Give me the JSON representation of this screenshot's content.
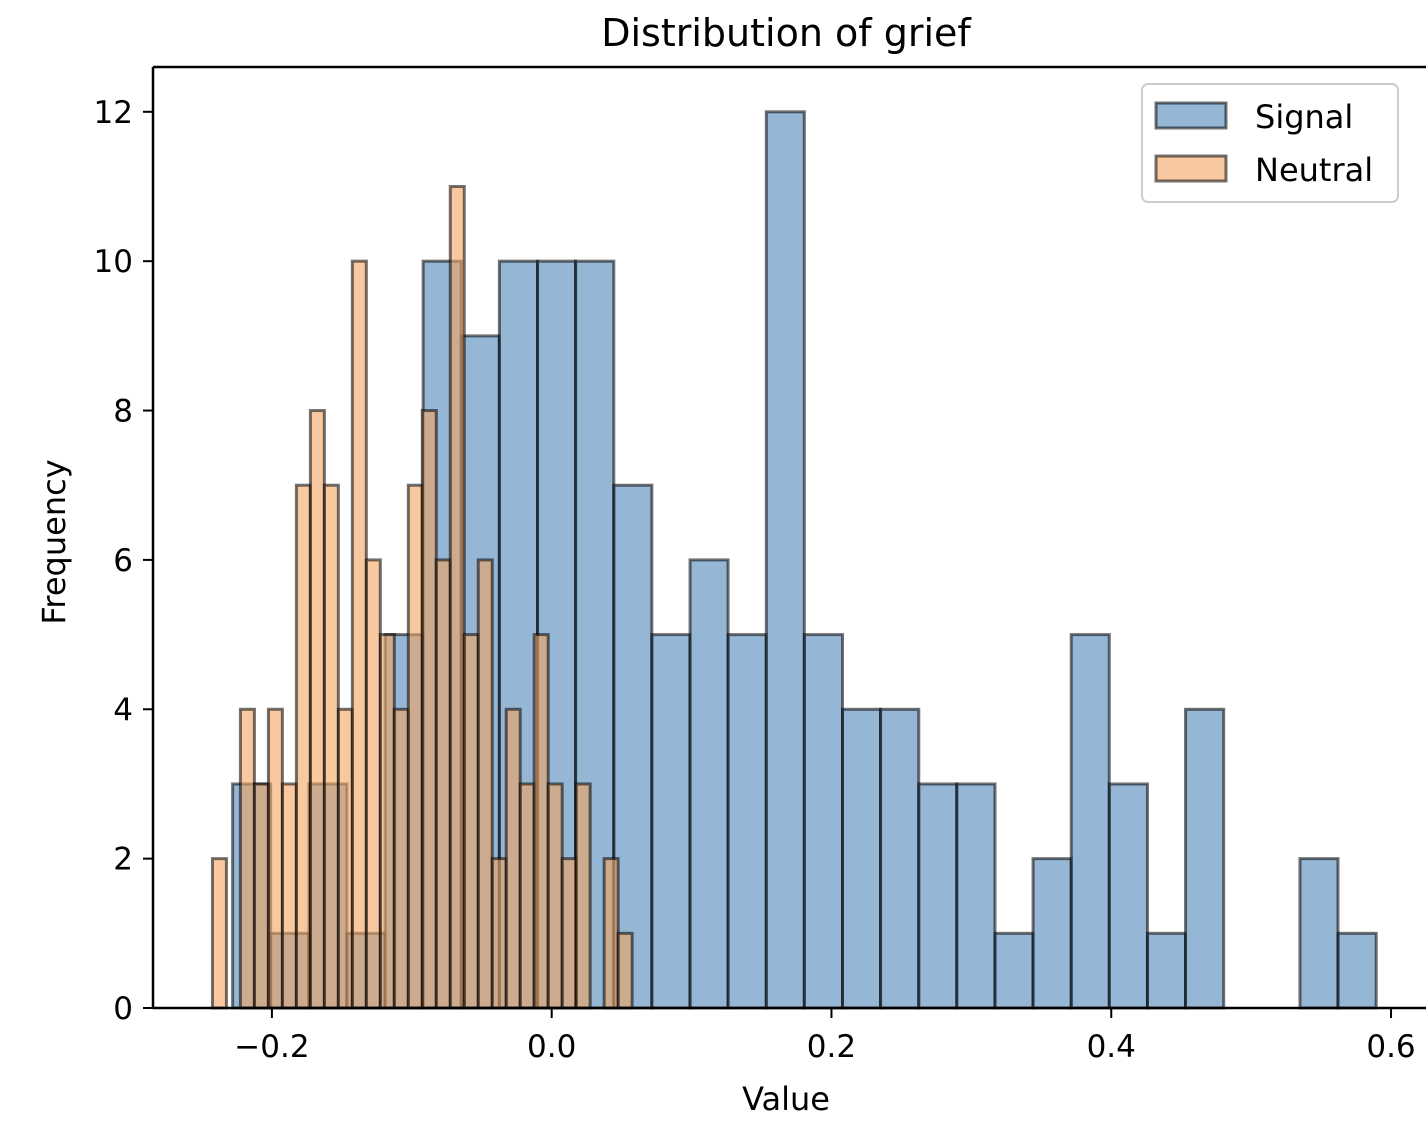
{
  "chart_data": {
    "type": "histogram",
    "title": "Distribution of grief",
    "xlabel": "Value",
    "ylabel": "Frequency",
    "xlim": [
      -0.285,
      0.625
    ],
    "ylim": [
      0,
      12.6
    ],
    "xticks": [
      -0.2,
      0.0,
      0.2,
      0.4,
      0.6
    ],
    "xtick_labels": [
      "−0.2",
      "0.0",
      "0.2",
      "0.4",
      "0.6"
    ],
    "yticks": [
      0,
      2,
      4,
      6,
      8,
      10,
      12
    ],
    "ytick_labels": [
      "0",
      "2",
      "4",
      "6",
      "8",
      "10",
      "12"
    ],
    "legend": {
      "position": "top-right",
      "entries": [
        "Signal",
        "Neutral"
      ]
    },
    "series": [
      {
        "name": "Signal",
        "color": "#4f86b8",
        "bins": [
          [
            -0.2281,
            -0.2009,
            3
          ],
          [
            -0.2009,
            -0.1736,
            1
          ],
          [
            -0.1736,
            -0.1464,
            3
          ],
          [
            -0.1464,
            -0.1191,
            1
          ],
          [
            -0.1191,
            -0.0919,
            5
          ],
          [
            -0.0919,
            -0.0646,
            10
          ],
          [
            -0.0646,
            -0.0374,
            9
          ],
          [
            -0.0374,
            -0.0101,
            10
          ],
          [
            -0.0101,
            0.0171,
            10
          ],
          [
            0.0171,
            0.0444,
            10
          ],
          [
            0.0444,
            0.0716,
            7
          ],
          [
            0.0716,
            0.0989,
            5
          ],
          [
            0.0989,
            0.1261,
            6
          ],
          [
            0.1261,
            0.1534,
            5
          ],
          [
            0.1534,
            0.1806,
            12
          ],
          [
            0.1806,
            0.2079,
            5
          ],
          [
            0.2079,
            0.2351,
            4
          ],
          [
            0.2351,
            0.2624,
            4
          ],
          [
            0.2624,
            0.2896,
            3
          ],
          [
            0.2896,
            0.3169,
            3
          ],
          [
            0.3169,
            0.3441,
            1
          ],
          [
            0.3441,
            0.3714,
            2
          ],
          [
            0.3714,
            0.3986,
            5
          ],
          [
            0.3986,
            0.4259,
            3
          ],
          [
            0.4259,
            0.4531,
            1
          ],
          [
            0.4531,
            0.4804,
            4
          ],
          [
            0.4804,
            0.5076,
            0
          ],
          [
            0.5076,
            0.5349,
            0
          ],
          [
            0.5349,
            0.5621,
            2
          ],
          [
            0.5621,
            0.5894,
            1
          ]
        ]
      },
      {
        "name": "Neutral",
        "color": "#f4a460",
        "bins": [
          [
            -0.2425,
            -0.2325,
            2
          ],
          [
            -0.2325,
            -0.2225,
            0
          ],
          [
            -0.2225,
            -0.2125,
            4
          ],
          [
            -0.2125,
            -0.2025,
            3
          ],
          [
            -0.2025,
            -0.1925,
            4
          ],
          [
            -0.1925,
            -0.1825,
            3
          ],
          [
            -0.1825,
            -0.1725,
            7
          ],
          [
            -0.1725,
            -0.1625,
            8
          ],
          [
            -0.1625,
            -0.1525,
            7
          ],
          [
            -0.1525,
            -0.1425,
            4
          ],
          [
            -0.1425,
            -0.1325,
            10
          ],
          [
            -0.1325,
            -0.1225,
            6
          ],
          [
            -0.1225,
            -0.1125,
            5
          ],
          [
            -0.1125,
            -0.1025,
            4
          ],
          [
            -0.1025,
            -0.0925,
            7
          ],
          [
            -0.0925,
            -0.0825,
            8
          ],
          [
            -0.0825,
            -0.0725,
            6
          ],
          [
            -0.0725,
            -0.0625,
            11
          ],
          [
            -0.0625,
            -0.0525,
            5
          ],
          [
            -0.0525,
            -0.0425,
            6
          ],
          [
            -0.0425,
            -0.0325,
            2
          ],
          [
            -0.0325,
            -0.0225,
            4
          ],
          [
            -0.0225,
            -0.0125,
            3
          ],
          [
            -0.0125,
            -0.0025,
            5
          ],
          [
            -0.0025,
            0.0075,
            3
          ],
          [
            0.0075,
            0.0175,
            2
          ],
          [
            0.0175,
            0.0275,
            3
          ],
          [
            0.0275,
            0.0375,
            0
          ],
          [
            0.0375,
            0.0475,
            2
          ],
          [
            0.0475,
            0.0575,
            1
          ]
        ]
      }
    ]
  }
}
